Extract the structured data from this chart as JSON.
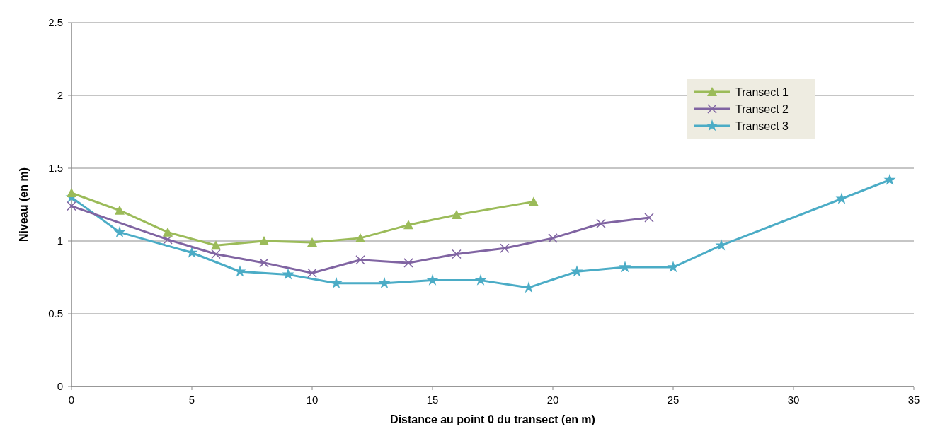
{
  "chart_data": {
    "type": "line",
    "xlabel": "Distance au point 0 du transect (en m)",
    "ylabel": "Niveau (en m)",
    "xlim": [
      0,
      35
    ],
    "xticks": [
      0,
      5,
      10,
      15,
      20,
      25,
      30,
      35
    ],
    "ylim": [
      0,
      2.5
    ],
    "yticks": [
      0,
      {
        "value": 0.5,
        "label": "0.5"
      },
      1,
      {
        "value": 1.5,
        "label": "1.5"
      },
      2,
      {
        "value": 2.5,
        "label": "2.5"
      }
    ],
    "grid": "y",
    "legend": "top right",
    "series": [
      {
        "name": "Transect 1",
        "color": "#9bbb59",
        "marker": "triangle",
        "x": [
          0,
          2,
          4,
          6,
          8,
          10,
          12,
          14,
          16,
          19.2
        ],
        "values": [
          1.33,
          1.21,
          1.06,
          0.97,
          1.0,
          0.99,
          1.02,
          1.11,
          1.18,
          1.27
        ]
      },
      {
        "name": "Transect 2",
        "color": "#8064a2",
        "marker": "cross",
        "x": [
          0,
          4,
          6,
          8,
          10,
          12,
          14,
          16,
          18,
          20,
          22,
          24
        ],
        "values": [
          1.24,
          1.01,
          0.91,
          0.85,
          0.78,
          0.87,
          0.85,
          0.91,
          0.95,
          1.02,
          1.12,
          1.16
        ]
      },
      {
        "name": "Transect 3",
        "color": "#4bacc6",
        "marker": "star",
        "x": [
          0,
          2,
          5,
          7,
          9,
          11,
          13,
          15,
          17,
          19,
          21,
          23,
          25,
          27,
          32,
          34
        ],
        "values": [
          1.3,
          1.06,
          0.92,
          0.79,
          0.77,
          0.71,
          0.71,
          0.73,
          0.73,
          0.68,
          0.79,
          0.82,
          0.82,
          0.97,
          1.29,
          1.42
        ]
      }
    ]
  }
}
